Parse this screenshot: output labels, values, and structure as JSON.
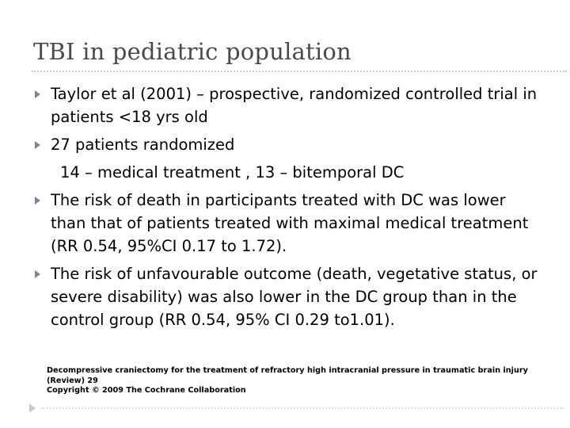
{
  "slide": {
    "title": "TBI in pediatric population",
    "bullets": [
      {
        "text": "Taylor et al (2001) – prospective, randomized controlled trial in patients <18 yrs old"
      },
      {
        "text": "27 patients randomized"
      },
      {
        "text": "14 – medical treatment , 13 – bitemporal DC"
      },
      {
        "text": "The risk of death in participants treated with DC was lower than that of patients treated with maximal medical treatment (RR 0.54, 95%CI 0.17 to 1.72)."
      },
      {
        "text": "The risk of unfavourable outcome (death, vegetative status, or severe disability) was also lower in the DC group than in the control group (RR 0.54, 95% CI 0.29 to1.01)."
      }
    ],
    "footnote": {
      "citation": "Decompressive craniectomy for the treatment of refractory high intracranial pressure in traumatic brain injury (Review) 29",
      "copyright": "Copyright © 2009 The Cochrane Collaboration"
    },
    "icons": {
      "bullet": "triangle-bullet-icon",
      "nav": "next-slide-arrow-icon"
    },
    "colors": {
      "title": "#4a4a4a",
      "bullet": "#7f8497",
      "rule": "#c9cbd6"
    }
  }
}
